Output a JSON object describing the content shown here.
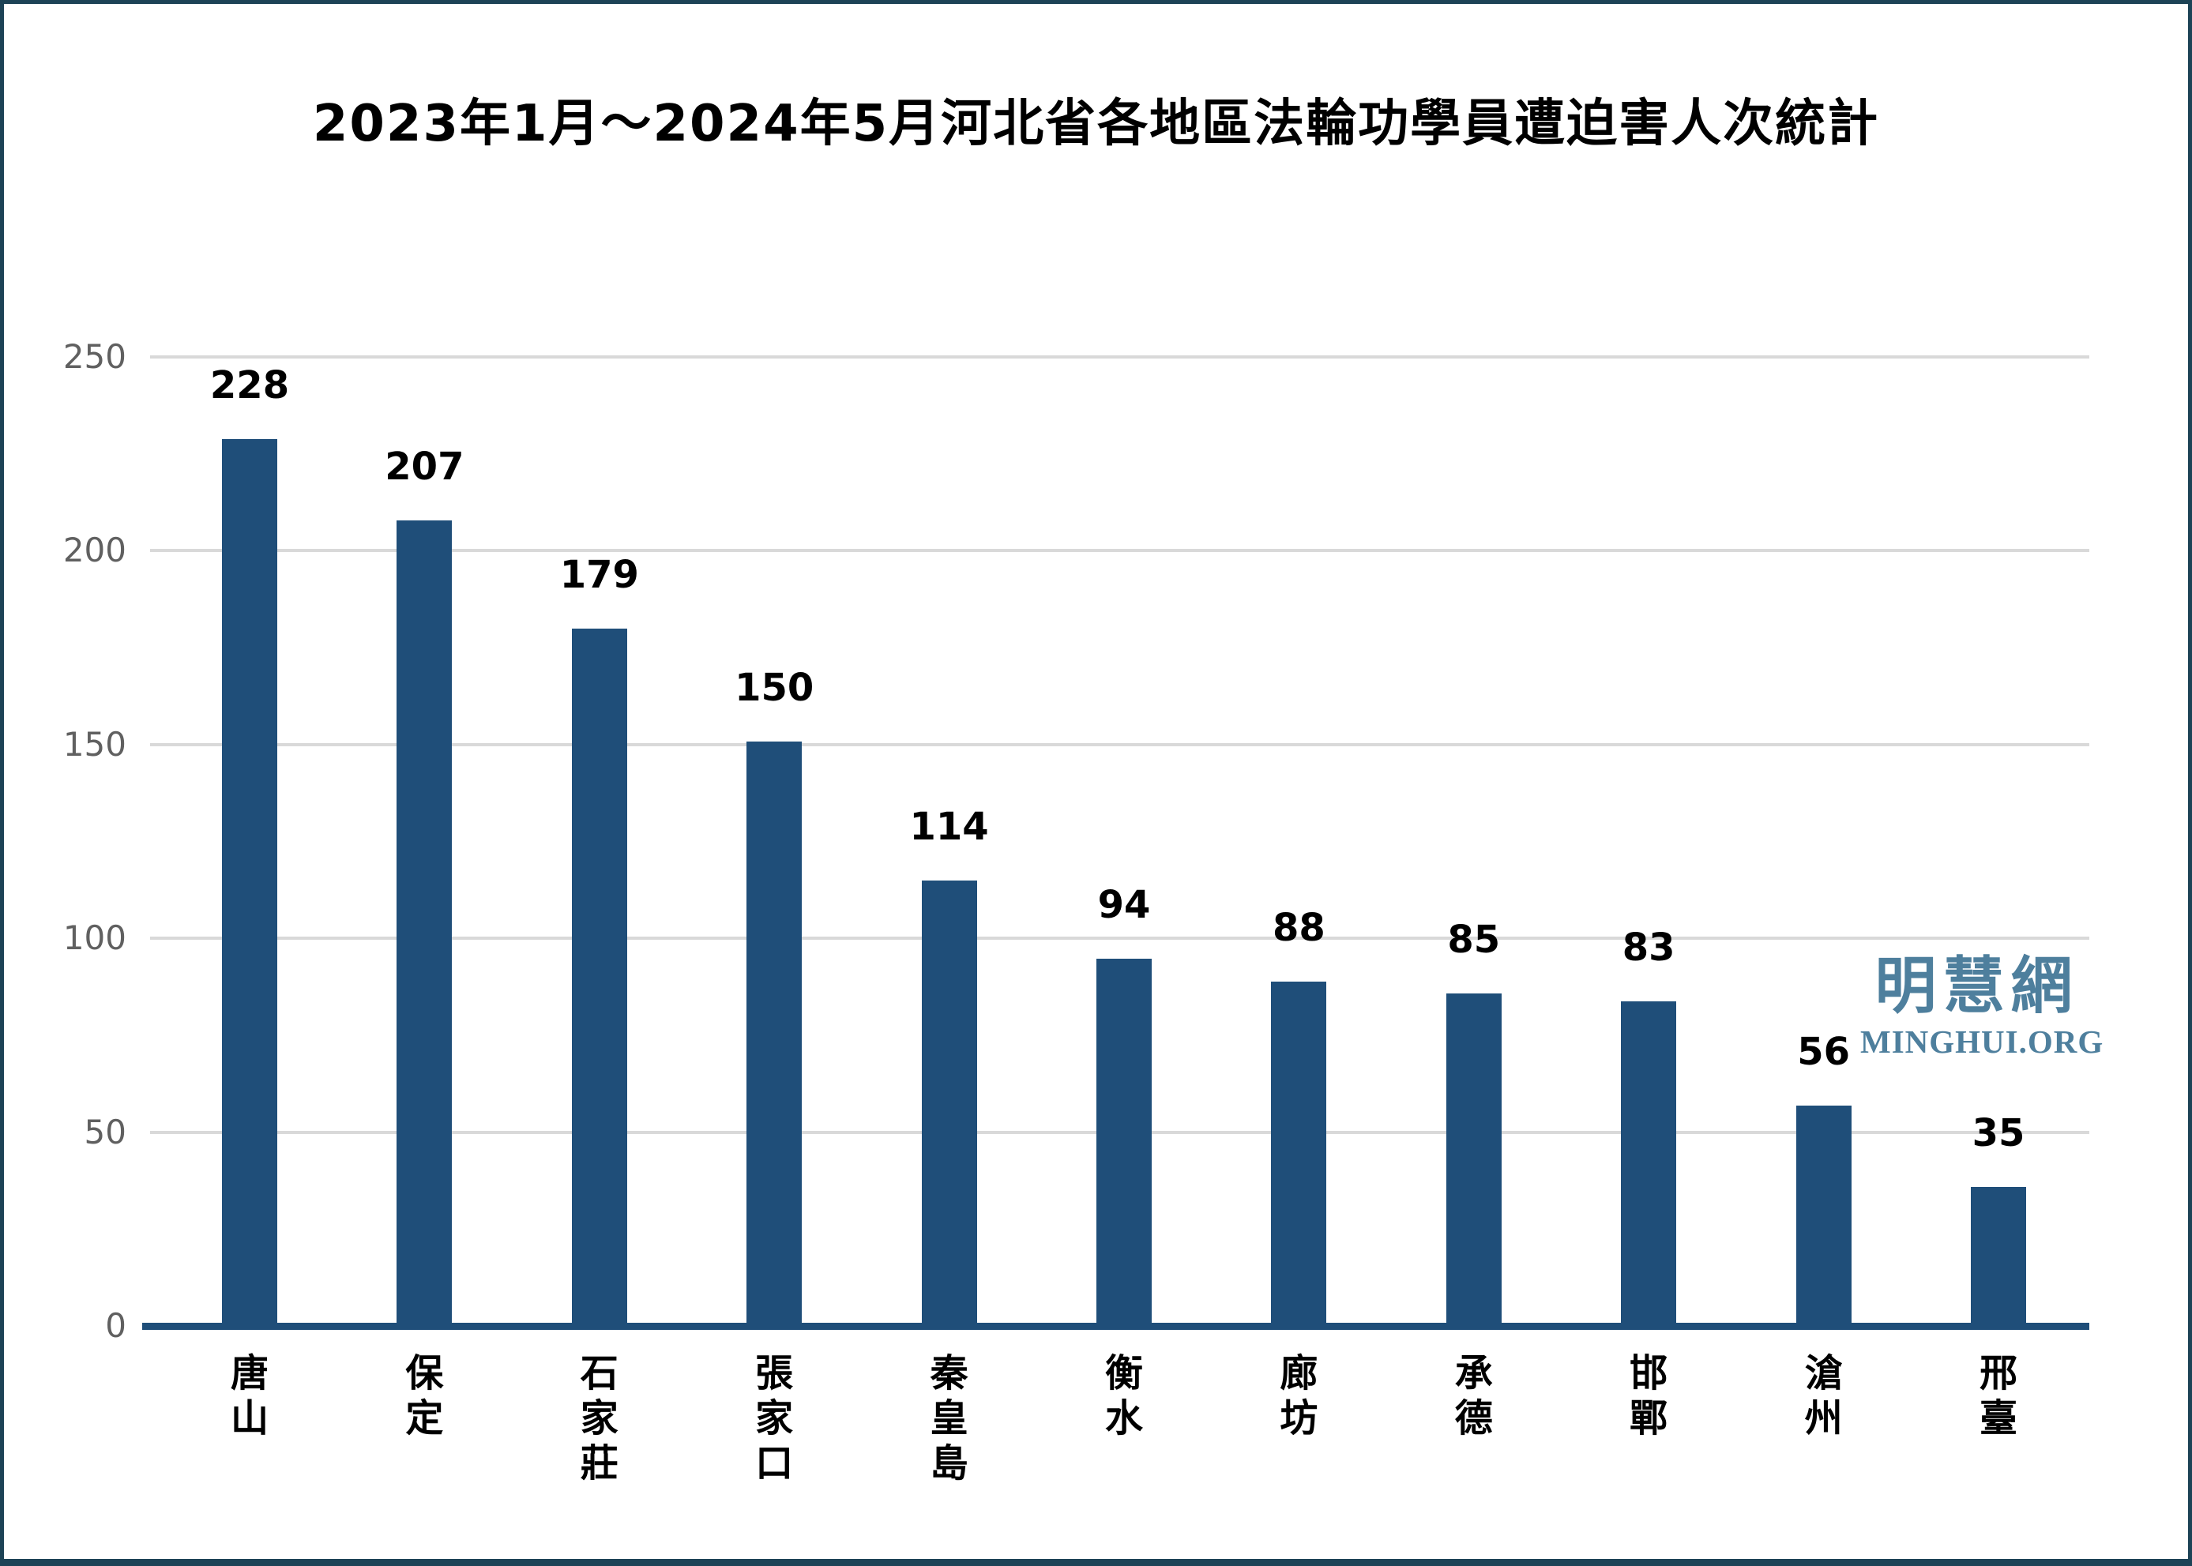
{
  "page": {
    "title": "2023年1月～2024年5月河北省各地區法輪功學員遭迫害人次統計"
  },
  "watermark": {
    "cn": "明慧網",
    "en": "MINGHUI.ORG"
  },
  "chart_data": {
    "type": "bar",
    "title": "2023年1月～2024年5月河北省各地區法輪功學員遭迫害人次統計",
    "categories": [
      "唐山",
      "保定",
      "石家莊",
      "張家口",
      "秦皇島",
      "衡水",
      "廊坊",
      "承德",
      "邯鄲",
      "滄州",
      "邢臺"
    ],
    "values": [
      228,
      207,
      179,
      150,
      114,
      94,
      88,
      85,
      83,
      56,
      35
    ],
    "xlabel": "",
    "ylabel": "",
    "ylim": [
      0,
      250
    ],
    "yticks": [
      250,
      200,
      150,
      100,
      50,
      0
    ],
    "grid": true,
    "legend": false,
    "value_labels_shown": true,
    "bar_color": "#1F4E79",
    "gridline_color": "#D9D9D9",
    "axis_tick_color": "#606060",
    "value_label_color": "#000000",
    "watermark_color": "#4E7F9D",
    "frame_border_color": "#1D4356"
  }
}
